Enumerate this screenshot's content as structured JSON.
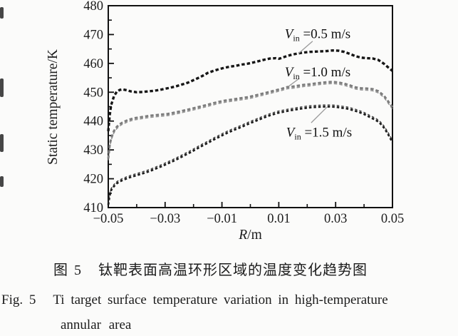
{
  "figure": {
    "caption_zh_label": "图 5",
    "caption_zh_text": "钛靶表面高温环形区域的温度变化趋势图",
    "caption_en_label": "Fig. 5",
    "caption_en_line1": "Ti target surface temperature variation in high-temperature",
    "caption_en_line2": "annular area"
  },
  "chart_data": {
    "type": "scatter",
    "title": "",
    "xlabel_var": "R",
    "xlabel_rest": "/m",
    "ylabel": "Static temperature/K",
    "xlim": [
      -0.05,
      0.05
    ],
    "ylim": [
      410,
      480
    ],
    "grid": false,
    "legend_position": "inline-annotations",
    "axis_color": "#111111",
    "leader_color": "#9a9a9a",
    "x_major_ticks": [
      -0.05,
      -0.03,
      -0.01,
      0.01,
      0.03,
      0.05
    ],
    "x_tick_labels": [
      "−0.05",
      "−0.03",
      "−0.01",
      "0.01",
      "0.03",
      "0.05"
    ],
    "x_minor_ticks": [
      -0.04,
      -0.02,
      0,
      0.02,
      0.04
    ],
    "y_major_ticks": [
      410,
      420,
      430,
      440,
      450,
      460,
      470,
      480
    ],
    "y_tick_labels": [
      "410",
      "420",
      "430",
      "440",
      "450",
      "460",
      "470",
      "480"
    ],
    "y_minor_ticks": [
      415,
      425,
      435,
      445,
      455,
      465,
      475
    ],
    "series": [
      {
        "name": "Vin=0.5 m/s",
        "color": "#161616",
        "dash": "4.5 3",
        "width": 3.4,
        "double_offset": 0,
        "label": {
          "var": "V",
          "sub": "in",
          "rest": " =0.5 m/s",
          "at": [
            0.0121,
            468.8
          ]
        },
        "leader": {
          "from": [
            0.0219,
            467.7
          ],
          "to": [
            0.0169,
            463.4
          ]
        },
        "points": [
          [
            -0.05,
            436.5
          ],
          [
            -0.0495,
            442.0
          ],
          [
            -0.049,
            445.5
          ],
          [
            -0.048,
            448.6
          ],
          [
            -0.047,
            450.2
          ],
          [
            -0.046,
            450.8
          ],
          [
            -0.045,
            451.0
          ],
          [
            -0.0435,
            450.7
          ],
          [
            -0.042,
            450.3
          ],
          [
            -0.04,
            450.0
          ],
          [
            -0.038,
            450.1
          ],
          [
            -0.036,
            450.3
          ],
          [
            -0.034,
            450.5
          ],
          [
            -0.032,
            450.8
          ],
          [
            -0.03,
            451.2
          ],
          [
            -0.028,
            451.6
          ],
          [
            -0.026,
            452.1
          ],
          [
            -0.024,
            452.7
          ],
          [
            -0.022,
            453.3
          ],
          [
            -0.02,
            454.2
          ],
          [
            -0.018,
            455.1
          ],
          [
            -0.016,
            456.1
          ],
          [
            -0.015,
            456.7
          ],
          [
            -0.013,
            457.4
          ],
          [
            -0.011,
            458.0
          ],
          [
            -0.009,
            458.5
          ],
          [
            -0.007,
            458.9
          ],
          [
            -0.005,
            459.2
          ],
          [
            -0.003,
            459.6
          ],
          [
            -0.001,
            459.9
          ],
          [
            0.001,
            460.3
          ],
          [
            0.003,
            460.8
          ],
          [
            0.005,
            461.3
          ],
          [
            0.007,
            461.7
          ],
          [
            0.009,
            461.8
          ],
          [
            0.01,
            461.6
          ],
          [
            0.011,
            461.9
          ],
          [
            0.013,
            462.6
          ],
          [
            0.015,
            463.1
          ],
          [
            0.017,
            463.5
          ],
          [
            0.019,
            463.8
          ],
          [
            0.021,
            464.0
          ],
          [
            0.023,
            464.1
          ],
          [
            0.025,
            464.2
          ],
          [
            0.027,
            464.3
          ],
          [
            0.029,
            464.5
          ],
          [
            0.031,
            464.4
          ],
          [
            0.033,
            464.0
          ],
          [
            0.035,
            463.3
          ],
          [
            0.037,
            462.5
          ],
          [
            0.039,
            462.0
          ],
          [
            0.041,
            461.8
          ],
          [
            0.043,
            461.7
          ],
          [
            0.045,
            461.2
          ],
          [
            0.047,
            459.9
          ],
          [
            0.0485,
            458.6
          ],
          [
            0.05,
            457.4
          ]
        ]
      },
      {
        "name": "Vin=1.0 m/s",
        "color": "#7d7d7d",
        "dash": "4.5 3",
        "width": 3.0,
        "double_offset": 2.4,
        "label": {
          "var": "V",
          "sub": "in",
          "rest": " =1.0 m/s",
          "at": [
            0.0121,
            455.5
          ]
        },
        "leader": {
          "from": [
            0.0171,
            454.7
          ],
          "to": [
            0.0134,
            452.0
          ]
        },
        "points": [
          [
            -0.05,
            427.0
          ],
          [
            -0.0495,
            431.5
          ],
          [
            -0.049,
            434.0
          ],
          [
            -0.048,
            436.6
          ],
          [
            -0.047,
            438.0
          ],
          [
            -0.046,
            438.9
          ],
          [
            -0.045,
            439.5
          ],
          [
            -0.043,
            440.4
          ],
          [
            -0.041,
            441.0
          ],
          [
            -0.039,
            441.3
          ],
          [
            -0.037,
            441.6
          ],
          [
            -0.035,
            441.9
          ],
          [
            -0.033,
            442.1
          ],
          [
            -0.031,
            442.3
          ],
          [
            -0.029,
            442.5
          ],
          [
            -0.027,
            442.9
          ],
          [
            -0.025,
            443.3
          ],
          [
            -0.023,
            443.8
          ],
          [
            -0.021,
            444.2
          ],
          [
            -0.019,
            444.7
          ],
          [
            -0.017,
            445.2
          ],
          [
            -0.015,
            445.7
          ],
          [
            -0.013,
            446.2
          ],
          [
            -0.011,
            446.7
          ],
          [
            -0.009,
            447.1
          ],
          [
            -0.007,
            447.4
          ],
          [
            -0.005,
            447.7
          ],
          [
            -0.003,
            448.0
          ],
          [
            -0.001,
            448.3
          ],
          [
            0.001,
            448.7
          ],
          [
            0.003,
            449.2
          ],
          [
            0.005,
            449.7
          ],
          [
            0.007,
            450.2
          ],
          [
            0.009,
            450.7
          ],
          [
            0.011,
            451.2
          ],
          [
            0.013,
            451.8
          ],
          [
            0.015,
            452.0
          ],
          [
            0.017,
            452.3
          ],
          [
            0.019,
            452.6
          ],
          [
            0.021,
            452.8
          ],
          [
            0.023,
            453.1
          ],
          [
            0.025,
            453.3
          ],
          [
            0.027,
            453.5
          ],
          [
            0.029,
            453.6
          ],
          [
            0.031,
            453.4
          ],
          [
            0.033,
            453.0
          ],
          [
            0.035,
            452.4
          ],
          [
            0.037,
            451.7
          ],
          [
            0.039,
            451.4
          ],
          [
            0.041,
            451.3
          ],
          [
            0.043,
            451.1
          ],
          [
            0.045,
            450.4
          ],
          [
            0.047,
            448.8
          ],
          [
            0.0485,
            446.8
          ],
          [
            0.05,
            444.8
          ]
        ]
      },
      {
        "name": "Vin=1.5 m/s",
        "color": "#1e1e1e",
        "dash": "3.5 3",
        "width": 2.8,
        "double_offset": -2.4,
        "label": {
          "var": "V",
          "sub": "in",
          "rest": " =1.5 m/s",
          "at": [
            0.0126,
            434.6
          ]
        },
        "leader": {
          "from": [
            0.0214,
            439.4
          ],
          "to": [
            0.027,
            444.9
          ]
        },
        "points": [
          [
            -0.05,
            411.0
          ],
          [
            -0.0495,
            414.2
          ],
          [
            -0.049,
            416.0
          ],
          [
            -0.048,
            417.4
          ],
          [
            -0.047,
            418.4
          ],
          [
            -0.046,
            419.0
          ],
          [
            -0.045,
            419.5
          ],
          [
            -0.043,
            420.3
          ],
          [
            -0.041,
            420.9
          ],
          [
            -0.039,
            421.5
          ],
          [
            -0.037,
            422.1
          ],
          [
            -0.035,
            422.8
          ],
          [
            -0.033,
            423.6
          ],
          [
            -0.031,
            424.4
          ],
          [
            -0.029,
            425.3
          ],
          [
            -0.027,
            426.2
          ],
          [
            -0.025,
            427.2
          ],
          [
            -0.023,
            428.2
          ],
          [
            -0.021,
            429.2
          ],
          [
            -0.019,
            430.3
          ],
          [
            -0.017,
            431.4
          ],
          [
            -0.015,
            432.4
          ],
          [
            -0.013,
            433.5
          ],
          [
            -0.011,
            434.5
          ],
          [
            -0.009,
            435.5
          ],
          [
            -0.007,
            436.4
          ],
          [
            -0.005,
            437.2
          ],
          [
            -0.003,
            438.0
          ],
          [
            -0.001,
            438.9
          ],
          [
            0.001,
            439.7
          ],
          [
            0.003,
            440.5
          ],
          [
            0.005,
            441.3
          ],
          [
            0.007,
            442.0
          ],
          [
            0.009,
            442.6
          ],
          [
            0.01,
            442.9
          ],
          [
            0.012,
            443.3
          ],
          [
            0.014,
            443.7
          ],
          [
            0.016,
            444.0
          ],
          [
            0.018,
            444.3
          ],
          [
            0.02,
            444.6
          ],
          [
            0.022,
            444.8
          ],
          [
            0.024,
            444.9
          ],
          [
            0.026,
            445.0
          ],
          [
            0.028,
            445.0
          ],
          [
            0.03,
            444.9
          ],
          [
            0.032,
            444.6
          ],
          [
            0.034,
            444.3
          ],
          [
            0.036,
            443.8
          ],
          [
            0.038,
            443.2
          ],
          [
            0.04,
            442.4
          ],
          [
            0.042,
            441.4
          ],
          [
            0.044,
            440.4
          ],
          [
            0.045,
            439.8
          ],
          [
            0.046,
            438.9
          ],
          [
            0.047,
            437.7
          ],
          [
            0.048,
            436.2
          ],
          [
            0.049,
            434.5
          ],
          [
            0.05,
            432.6
          ]
        ]
      }
    ]
  }
}
